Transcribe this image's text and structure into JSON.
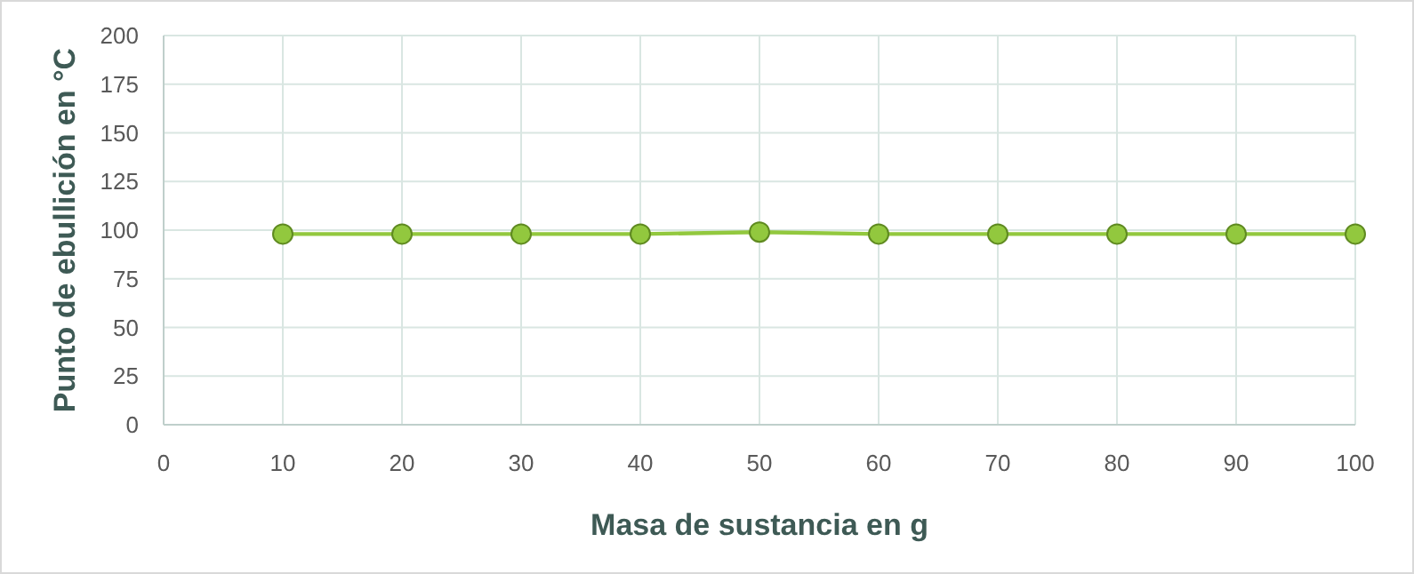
{
  "chart_data": {
    "type": "line",
    "xlabel": "Masa de sustancia en g",
    "ylabel": "Punto de ebullición en °C",
    "x": [
      10,
      20,
      30,
      40,
      50,
      60,
      70,
      80,
      90,
      100
    ],
    "series": [
      {
        "color": "#92c83e",
        "values": [
          98,
          98,
          98,
          98,
          99,
          98,
          98,
          98,
          98,
          98
        ]
      }
    ],
    "xlim": [
      0,
      100
    ],
    "xticks": [
      0,
      10,
      20,
      30,
      40,
      50,
      60,
      70,
      80,
      90,
      100
    ],
    "ylim": [
      0,
      200
    ],
    "yticks": [
      0,
      25,
      50,
      75,
      100,
      125,
      150,
      175,
      200
    ],
    "grid": true,
    "marker": "circle",
    "line_style": "solid"
  }
}
